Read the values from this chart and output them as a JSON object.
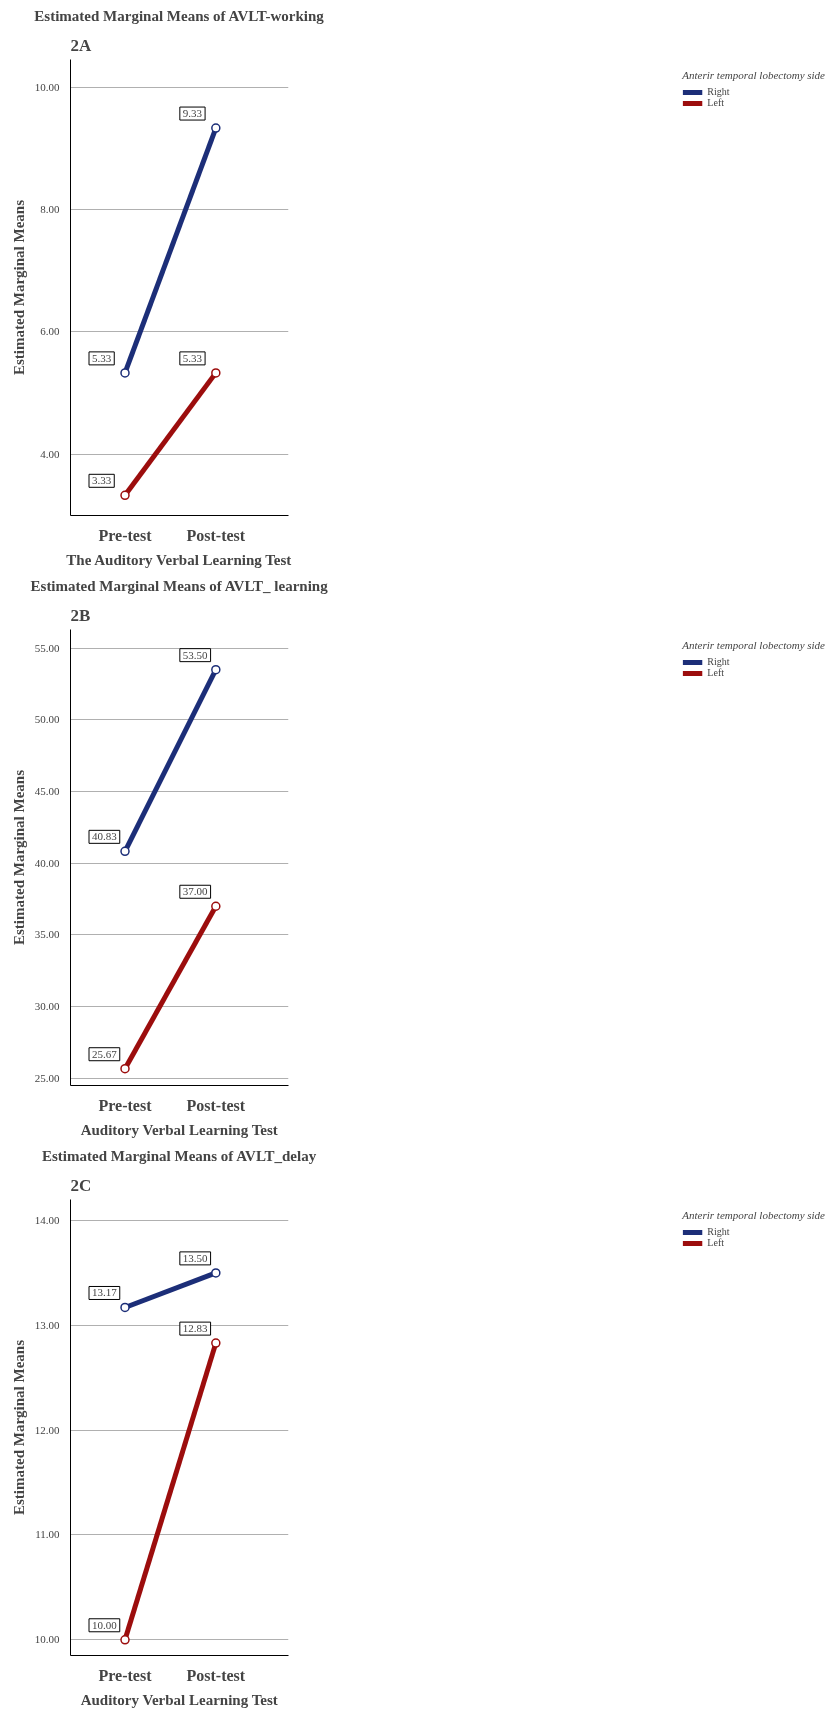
{
  "chart_data": [
    {
      "type": "line",
      "title": "Estimated Marginal Means of AVLT-working",
      "xlabel": "The Auditory Verbal Learning Test",
      "ylabel": "Estimated Marginal Means",
      "legend_title": "Anterir temporal lobectomy side",
      "annotations": [
        "2A"
      ],
      "categories": [
        "Pre-test",
        "Post-test"
      ],
      "series": [
        {
          "name": "Right",
          "color": "#1c2e78",
          "values": [
            5.33,
            9.33
          ],
          "value_labels": [
            "5.33",
            "9.33"
          ]
        },
        {
          "name": "Left",
          "color": "#9c0d0d",
          "values": [
            3.33,
            5.33
          ],
          "value_labels": [
            "3.33",
            "5.33"
          ]
        }
      ],
      "ylim": [
        3,
        10.45
      ],
      "yticks": [
        {
          "value": 4,
          "label": "4.00"
        },
        {
          "value": 6,
          "label": "6.00"
        },
        {
          "value": 8,
          "label": "8.00"
        },
        {
          "value": 10,
          "label": "10.00"
        }
      ],
      "grid": "y",
      "legend": "top right",
      "marker": "circle",
      "line_style": "solid"
    },
    {
      "type": "line",
      "title": "Estimated Marginal Means of AVLT_ learning",
      "xlabel": "Auditory Verbal Learning Test",
      "ylabel": "Estimated Marginal Means",
      "legend_title": "Anterir temporal lobectomy side",
      "annotations": [
        "2B"
      ],
      "categories": [
        "Pre-test",
        "Post-test"
      ],
      "series": [
        {
          "name": "Right",
          "color": "#1c2e78",
          "values": [
            40.83,
            53.5
          ],
          "value_labels": [
            "40.83",
            "53.50"
          ]
        },
        {
          "name": "Left",
          "color": "#9c0d0d",
          "values": [
            25.67,
            37.0
          ],
          "value_labels": [
            "25.67",
            "37.00"
          ]
        }
      ],
      "ylim": [
        24.5,
        56.3
      ],
      "yticks": [
        {
          "value": 25,
          "label": "25.00"
        },
        {
          "value": 30,
          "label": "30.00"
        },
        {
          "value": 35,
          "label": "35.00"
        },
        {
          "value": 40,
          "label": "40.00"
        },
        {
          "value": 45,
          "label": "45.00"
        },
        {
          "value": 50,
          "label": "50.00"
        },
        {
          "value": 55,
          "label": "55.00"
        }
      ],
      "grid": "y",
      "legend": "top right",
      "marker": "circle",
      "line_style": "solid"
    },
    {
      "type": "line",
      "title": "Estimated Marginal Means of AVLT_delay",
      "xlabel": "Auditory Verbal Learning Test",
      "ylabel": "Estimated Marginal Means",
      "legend_title": "Anterir temporal lobectomy side",
      "annotations": [
        "2C"
      ],
      "categories": [
        "Pre-test",
        "Post-test"
      ],
      "series": [
        {
          "name": "Right",
          "color": "#1c2e78",
          "values": [
            13.17,
            13.5
          ],
          "value_labels": [
            "13.17",
            "13.50"
          ]
        },
        {
          "name": "Left",
          "color": "#9c0d0d",
          "values": [
            10.0,
            12.83
          ],
          "value_labels": [
            "10.00",
            "12.83"
          ]
        }
      ],
      "ylim": [
        9.85,
        14.2
      ],
      "yticks": [
        {
          "value": 10,
          "label": "10.00"
        },
        {
          "value": 11,
          "label": "11.00"
        },
        {
          "value": 12,
          "label": "12.00"
        },
        {
          "value": 13,
          "label": "13.00"
        },
        {
          "value": 14,
          "label": "14.00"
        }
      ],
      "grid": "y",
      "legend": "top right",
      "marker": "circle",
      "line_style": "solid"
    }
  ]
}
